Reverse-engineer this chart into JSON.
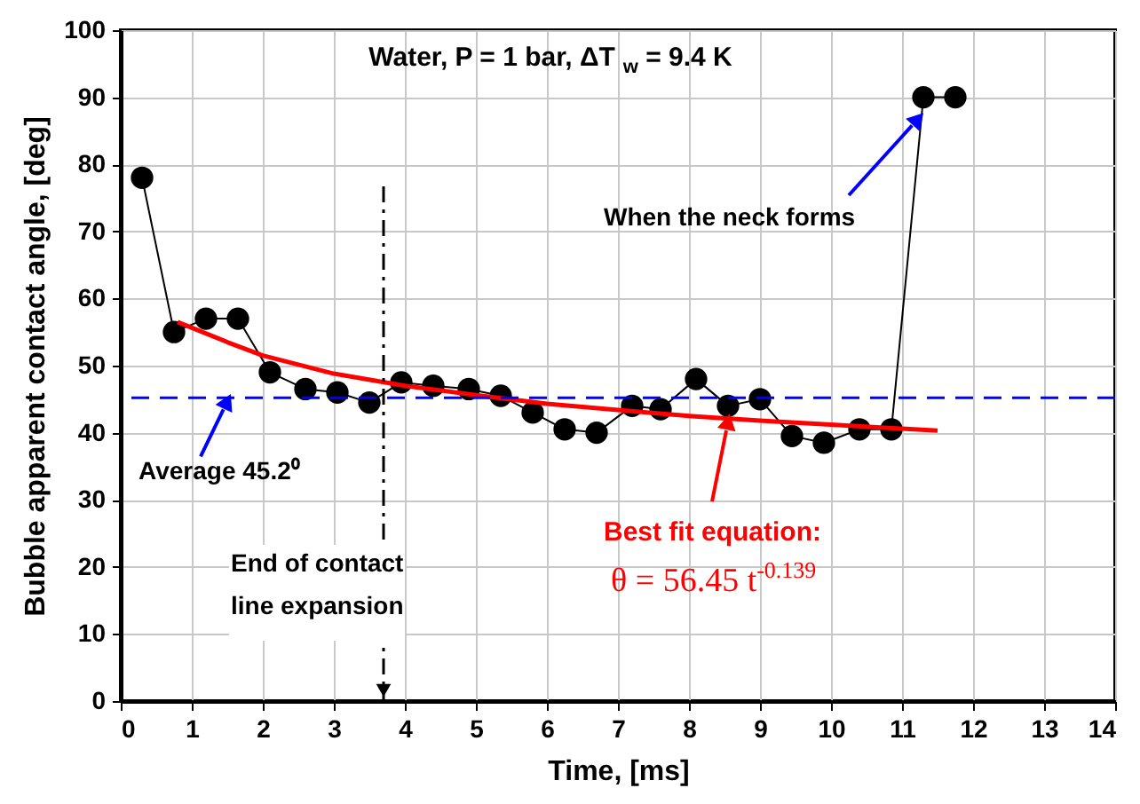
{
  "chart_data": {
    "type": "line",
    "title": "Water, P = 1 bar,  ΔT$_{w}$ = 9.4 K",
    "xlabel": "Time, [ms]",
    "ylabel": "Bubble apparent contact angle, [deg]",
    "xlim": [
      0,
      14
    ],
    "ylim": [
      0,
      100
    ],
    "xticks": [
      0,
      1,
      2,
      3,
      4,
      5,
      6,
      7,
      8,
      9,
      10,
      11,
      12,
      13,
      14
    ],
    "yticks": [
      0,
      10,
      20,
      30,
      40,
      50,
      60,
      70,
      80,
      90,
      100
    ],
    "grid": true,
    "series": [
      {
        "marker": "circle",
        "color": "#000000",
        "x": [
          0.3,
          0.75,
          1.2,
          1.65,
          2.1,
          2.6,
          3.05,
          3.5,
          3.95,
          4.4,
          4.9,
          5.35,
          5.8,
          6.25,
          6.7,
          7.2,
          7.6,
          8.1,
          8.55,
          9.0,
          9.45,
          9.9,
          10.4,
          10.85,
          11.3,
          11.75
        ],
        "values": [
          78,
          55,
          57,
          57,
          49,
          46.5,
          46,
          44.5,
          47.5,
          47,
          46.5,
          45.5,
          43,
          40.5,
          40,
          44,
          43.5,
          48,
          44,
          45,
          39.5,
          38.5,
          40.5,
          40.5,
          90,
          90
        ]
      },
      {
        "marker": "none",
        "color": "#ff0000",
        "x": [
          0.8,
          1.5,
          2,
          3,
          4,
          5,
          6,
          7,
          8,
          9,
          10,
          11.5
        ],
        "values": [
          56.5,
          53.5,
          51.5,
          48.8,
          47,
          45.6,
          44.3,
          43.4,
          42.5,
          41.8,
          41.2,
          40.3
        ]
      }
    ],
    "ref_lines": [
      {
        "axis": "y",
        "value": 45.2,
        "label": "Average 45.2⁰",
        "color": "#0000ff",
        "line_style": "dashed"
      },
      {
        "axis": "x",
        "value": 3.7,
        "label": "End of contact\nline expansion",
        "color": "#000000",
        "line_style": "dashdot"
      }
    ],
    "annotations": [
      "When the neck forms",
      {
        "text": "Best fit equation:",
        "x": 8.5,
        "y": 42.7
      },
      "θ = 56.45 t$^{-0.139}$"
    ]
  }
}
